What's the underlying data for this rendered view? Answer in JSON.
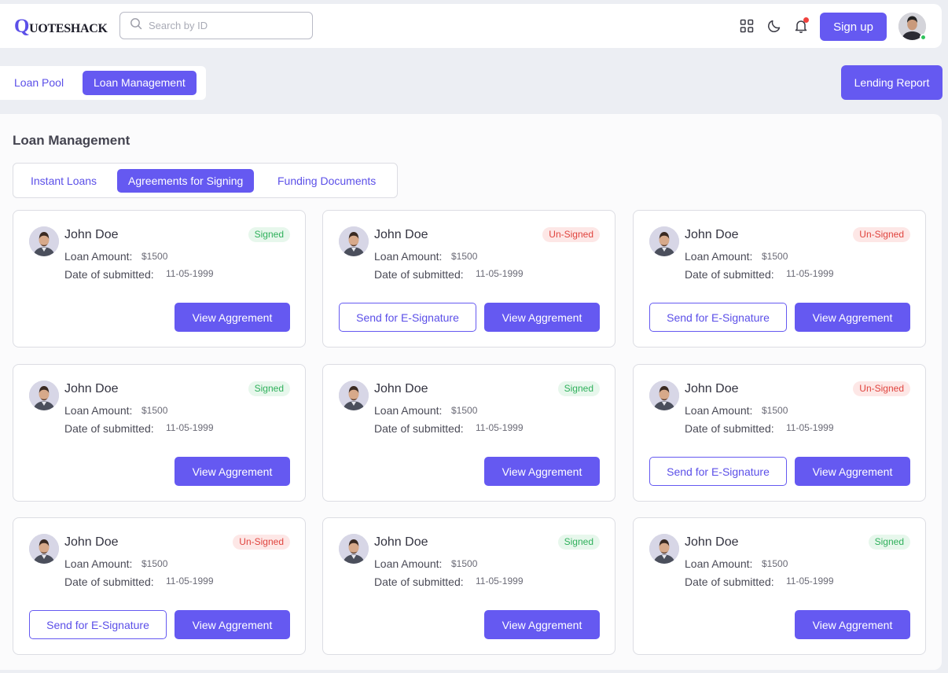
{
  "brand": {
    "first_letter": "Q",
    "rest": "UOTESHACK"
  },
  "search": {
    "placeholder": "Search by ID"
  },
  "header": {
    "signup_label": "Sign up"
  },
  "section_tabs": [
    {
      "label": "Loan Pool",
      "active": false
    },
    {
      "label": "Loan Management",
      "active": true
    }
  ],
  "lending_report_label": "Lending Report",
  "page_title": "Loan Management",
  "subtabs": [
    {
      "label": "Instant Loans",
      "active": false
    },
    {
      "label": "Agreements for Signing",
      "active": true
    },
    {
      "label": "Funding Documents",
      "active": false
    }
  ],
  "labels": {
    "loan_amount": "Loan Amount:",
    "date_submitted": "Date of submitted:",
    "view_button": "View Aggrement",
    "esign_button": "Send for E-Signature"
  },
  "cards": [
    {
      "name": "John Doe",
      "amount": "$1500",
      "date": "11-05-1999",
      "status": "Signed"
    },
    {
      "name": "John Doe",
      "amount": "$1500",
      "date": "11-05-1999",
      "status": "Un-Signed"
    },
    {
      "name": "John Doe",
      "amount": "$1500",
      "date": "11-05-1999",
      "status": "Un-Signed"
    },
    {
      "name": "John Doe",
      "amount": "$1500",
      "date": "11-05-1999",
      "status": "Signed"
    },
    {
      "name": "John Doe",
      "amount": "$1500",
      "date": "11-05-1999",
      "status": "Signed"
    },
    {
      "name": "John Doe",
      "amount": "$1500",
      "date": "11-05-1999",
      "status": "Un-Signed"
    },
    {
      "name": "John Doe",
      "amount": "$1500",
      "date": "11-05-1999",
      "status": "Un-Signed"
    },
    {
      "name": "John Doe",
      "amount": "$1500",
      "date": "11-05-1999",
      "status": "Signed"
    },
    {
      "name": "John Doe",
      "amount": "$1500",
      "date": "11-05-1999",
      "status": "Signed"
    }
  ],
  "colors": {
    "accent": "#6559f1",
    "signed_text": "#2fb05b",
    "unsigned_text": "#e0443e",
    "online": "#2fc25b",
    "notification": "#f0413d"
  }
}
